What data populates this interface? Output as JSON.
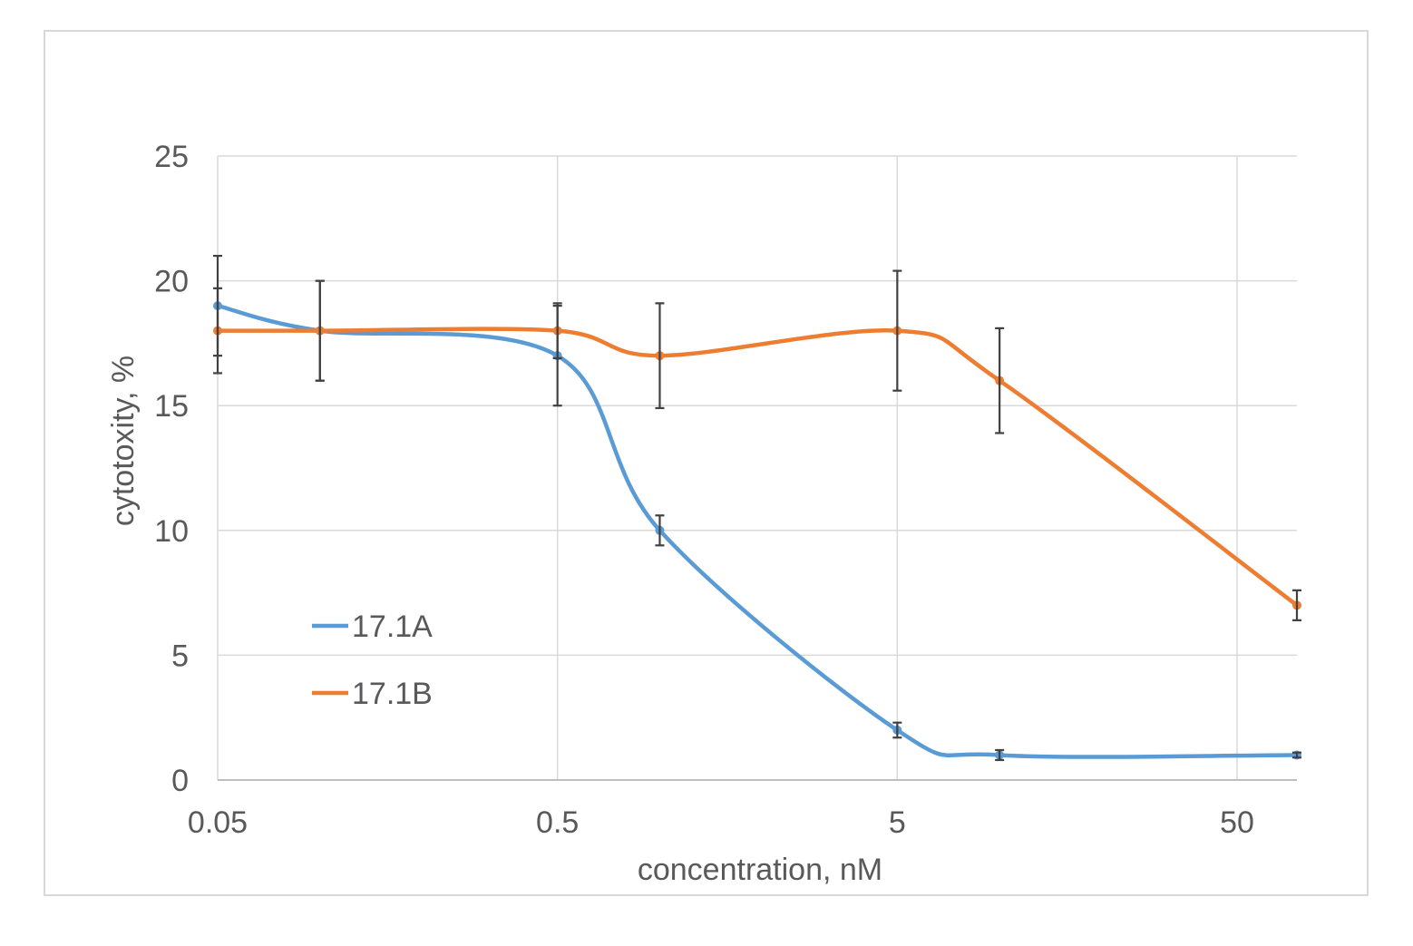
{
  "chart_data": {
    "type": "line",
    "title": "",
    "xlabel": "concentration, nM",
    "ylabel": "cytotoxity, %",
    "x_scale": "log10",
    "xlim": [
      0.05,
      75
    ],
    "ylim": [
      0,
      25
    ],
    "x_ticks": [
      "0.05",
      "0.5",
      "5",
      "50"
    ],
    "x_tick_values": [
      0.05,
      0.5,
      5,
      50
    ],
    "y_ticks": [
      "0",
      "5",
      "10",
      "15",
      "20",
      "25"
    ],
    "y_tick_values": [
      0,
      5,
      10,
      15,
      20,
      25
    ],
    "grid": true,
    "legend_position": "bottom-left",
    "line_smoothing": true,
    "series": [
      {
        "name": "17.1A",
        "color": "#5b9bd5",
        "x": [
          0.05,
          0.1,
          0.5,
          1,
          5,
          10,
          75
        ],
        "y": [
          19,
          18,
          17,
          10,
          2,
          1,
          1
        ],
        "error": [
          2,
          2,
          2,
          0.6,
          0.3,
          0.2,
          0.1
        ]
      },
      {
        "name": "17.1B",
        "color": "#ed7d31",
        "x": [
          0.05,
          0.1,
          0.5,
          1,
          5,
          10,
          75
        ],
        "y": [
          18,
          18,
          18,
          17,
          18,
          16,
          7
        ],
        "error": [
          1.7,
          2,
          1.1,
          2.1,
          2.4,
          2.1,
          0.6
        ]
      }
    ]
  }
}
